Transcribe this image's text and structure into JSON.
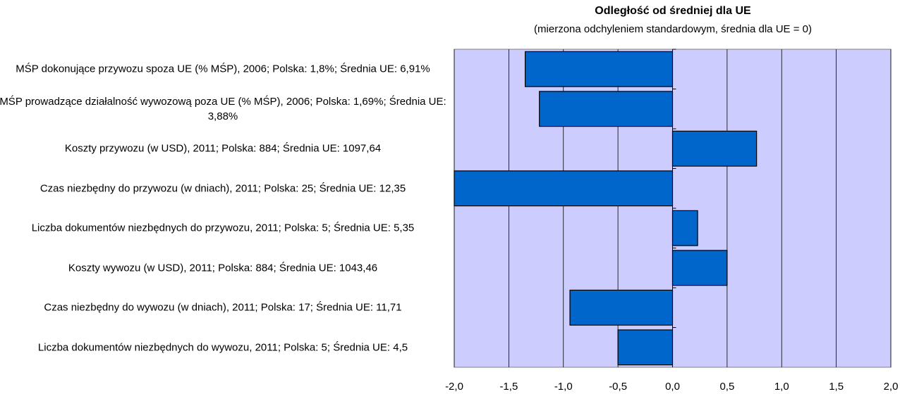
{
  "chart_data": {
    "type": "hbar",
    "title": "Odległość od średniej dla UE",
    "subtitle": "(mierzona odchyleniem standardowym,  średnia dla UE = 0)",
    "categories": [
      "MŚP dokonujące przywozu spoza UE (% MŚP), 2006; Polska: 1,8%; Średnia UE: 6,91%",
      "MŚP prowadzące działalność wywozową poza UE (% MŚP), 2006; Polska: 1,69%; Średnia UE: 3,88%",
      "Koszty przywozu (w USD), 2011; Polska: 884; Średnia UE: 1097,64",
      "Czas niezbędny do przywozu (w dniach), 2011; Polska: 25; Średnia UE: 12,35",
      "Liczba dokumentów niezbędnych do przywozu, 2011; Polska: 5; Średnia UE: 5,35",
      "Koszty wywozu (w USD), 2011; Polska: 884; Średnia UE: 1043,46",
      "Czas niezbędny do wywozu (w dniach), 2011; Polska: 17; Średnia UE: 11,71",
      "Liczba dokumentów niezbędnych do wywozu, 2011; Polska: 5; Średnia UE: 4,5"
    ],
    "values": [
      -1.35,
      -1.22,
      0.77,
      -2.0,
      0.23,
      0.5,
      -0.94,
      -0.5
    ],
    "color": "#0066cc",
    "background": "#ccccff",
    "grid": true,
    "xlim": [
      -2,
      2
    ],
    "xticks": [
      {
        "value": -2,
        "label": "-2,0"
      },
      {
        "value": -1.5,
        "label": "-1,5"
      },
      {
        "value": -1,
        "label": "-1,0"
      },
      {
        "value": -0.5,
        "label": "-0,5"
      },
      {
        "value": 0,
        "label": "0,0"
      },
      {
        "value": 0.5,
        "label": "0,5"
      },
      {
        "value": 1,
        "label": "1,0"
      },
      {
        "value": 1.5,
        "label": "1,5"
      },
      {
        "value": 2,
        "label": "2,0"
      }
    ]
  }
}
